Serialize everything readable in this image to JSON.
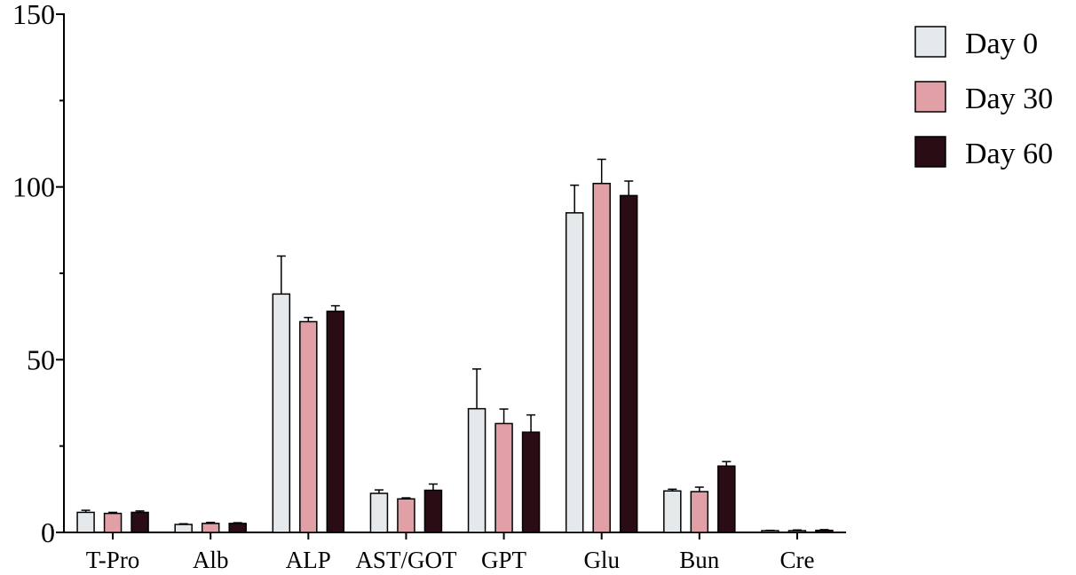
{
  "chart_data": {
    "type": "bar",
    "title": "",
    "xlabel": "",
    "ylabel": "",
    "ylim": [
      0,
      150
    ],
    "yticks": [
      0,
      50,
      100,
      150
    ],
    "grid": false,
    "legend_position": "top-right",
    "categories": [
      "T-Pro",
      "Alb",
      "ALP",
      "AST/GOT",
      "GPT",
      "Glu",
      "Bun",
      "Cre"
    ],
    "series": [
      {
        "name": "Day 0",
        "color": "#e6e9ec",
        "values": [
          5.8,
          2.3,
          69.0,
          11.3,
          35.8,
          92.5,
          12.0,
          0.5
        ],
        "errors": [
          0.6,
          0.2,
          11.0,
          1.0,
          11.5,
          8.0,
          0.5,
          0.1
        ]
      },
      {
        "name": "Day 30",
        "color": "#e0a0a5",
        "values": [
          5.5,
          2.6,
          61.0,
          9.7,
          31.5,
          101.0,
          11.8,
          0.5
        ],
        "errors": [
          0.3,
          0.3,
          1.2,
          0.3,
          4.2,
          7.0,
          1.3,
          0.2
        ]
      },
      {
        "name": "Day 60",
        "color": "#2a0c14",
        "values": [
          5.8,
          2.6,
          64.0,
          12.2,
          29.0,
          97.5,
          19.2,
          0.6
        ],
        "errors": [
          0.4,
          0.2,
          1.6,
          1.8,
          5.0,
          4.2,
          1.3,
          0.2
        ]
      }
    ]
  }
}
